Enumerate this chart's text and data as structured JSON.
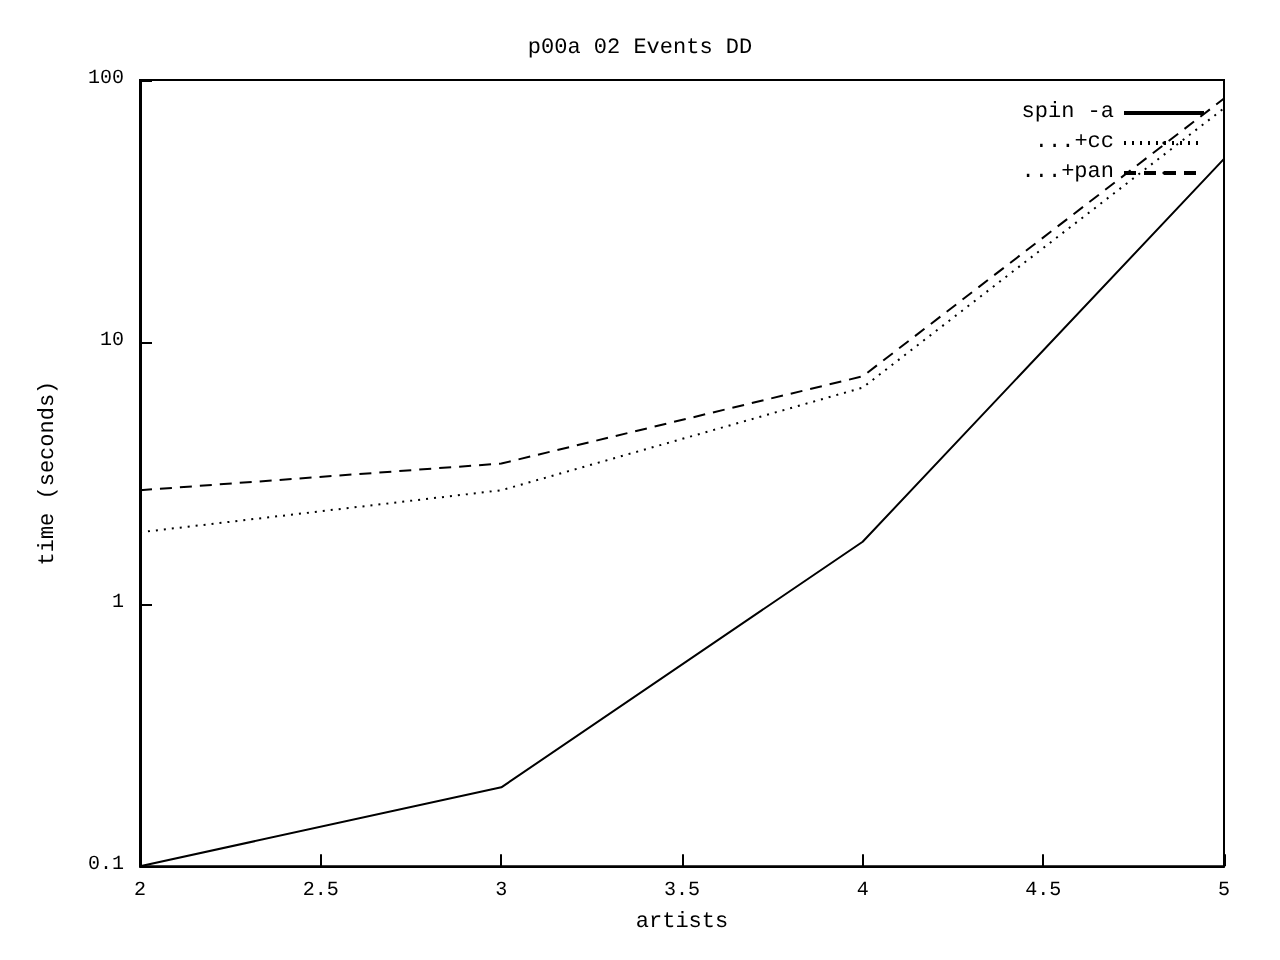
{
  "chart_data": {
    "type": "line",
    "title": "p00a 02 Events DD",
    "xlabel": "artists",
    "ylabel": "time (seconds)",
    "x": [
      2,
      3,
      4,
      5
    ],
    "series": [
      {
        "name": "spin -a",
        "color": "#000000",
        "line_style": "solid",
        "values": [
          0.1,
          0.2,
          1.73,
          50
        ]
      },
      {
        "name": "...+cc",
        "color": "#000000",
        "line_style": "dotted",
        "values": [
          1.88,
          2.72,
          6.7,
          78
        ]
      },
      {
        "name": "...+pan",
        "color": "#000000",
        "line_style": "dashed",
        "values": [
          2.72,
          3.44,
          7.4,
          85
        ]
      }
    ],
    "xlim": [
      2,
      5
    ],
    "xticks": [
      2,
      2.5,
      3,
      3.5,
      4,
      4.5,
      5
    ],
    "ylim": [
      0.1,
      100
    ],
    "yticks": [
      0.1,
      1,
      10,
      100
    ],
    "log": "y",
    "grid": false,
    "legend": "top right",
    "marker": "none"
  }
}
